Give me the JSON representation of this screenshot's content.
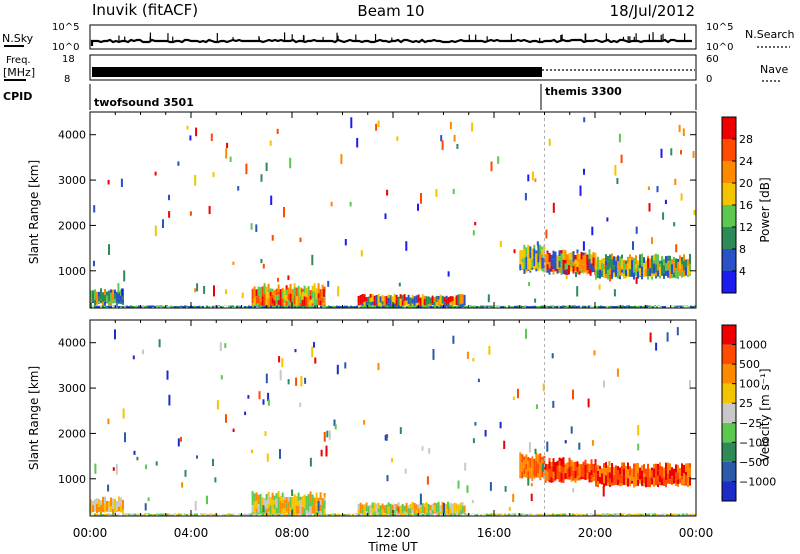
{
  "header": {
    "station": "Inuvik (fitACF)",
    "beam": "Beam 10",
    "date": "18/Jul/2012"
  },
  "top_panels": {
    "nsky_label": "N.Sky",
    "nsky_ticks": [
      "10^5",
      "10^0"
    ],
    "nsearch_label": "N.Search",
    "nsearch_ticks": [
      "10^5",
      "10^0"
    ],
    "freq_label_line1": "Freq.",
    "freq_label_line2": "[MHz]",
    "freq_ticks": [
      "18",
      "8"
    ],
    "nave_label": "Nave",
    "nave_ticks": [
      "60",
      "0"
    ],
    "cpid_label": "CPID",
    "cpid_segments": [
      {
        "name": "twofsound 3501",
        "start_hour": 0,
        "end_hour": 18
      },
      {
        "name": "themis 3300",
        "start_hour": 18,
        "end_hour": 24
      }
    ]
  },
  "x_axis": {
    "label": "Time UT",
    "ticks": [
      "00:00",
      "04:00",
      "08:00",
      "12:00",
      "16:00",
      "20:00",
      "00:00"
    ]
  },
  "chart_data": [
    {
      "type": "heatmap",
      "ylabel": "Slant Range [km]",
      "xlim": [
        0,
        24
      ],
      "ylim": [
        180,
        4500
      ],
      "yticks": [
        "1000",
        "2000",
        "3000",
        "4000"
      ],
      "colorbar": {
        "label": "Power [dB]",
        "ticks": [
          "4",
          "8",
          "12",
          "16",
          "20",
          "24",
          "28"
        ],
        "colors": [
          "#1c1cf0",
          "#2a52c8",
          "#2e8b57",
          "#5cc850",
          "#f5c400",
          "#ff8a00",
          "#ff4a00",
          "#ee0000"
        ]
      },
      "bands": [
        {
          "t0": 0.0,
          "t1": 1.3,
          "r0": 250,
          "r1": 560,
          "colors": [
            "#2a52c8",
            "#5cc850",
            "#ff8a00",
            "#2e8b57"
          ]
        },
        {
          "t0": 6.4,
          "t1": 9.3,
          "r0": 200,
          "r1": 650,
          "colors": [
            "#ee0000",
            "#ff4a00",
            "#ff8a00",
            "#f5c400",
            "#5cc850"
          ]
        },
        {
          "t0": 10.6,
          "t1": 14.8,
          "r0": 200,
          "r1": 450,
          "colors": [
            "#ee0000",
            "#ff8a00",
            "#f5c400",
            "#2e8b57",
            "#2a52c8"
          ]
        },
        {
          "t0": 17.0,
          "t1": 18.0,
          "r0": 1000,
          "r1": 1500,
          "colors": [
            "#2a52c8",
            "#5cc850",
            "#f5c400"
          ]
        },
        {
          "t0": 18.0,
          "t1": 20.0,
          "r0": 950,
          "r1": 1400,
          "colors": [
            "#2a52c8",
            "#5cc850",
            "#f5c400",
            "#ff8a00",
            "#ee0000"
          ]
        },
        {
          "t0": 20.0,
          "t1": 23.8,
          "r0": 850,
          "r1": 1300,
          "colors": [
            "#2a52c8",
            "#2e8b57",
            "#5cc850",
            "#f5c400",
            "#ff8a00"
          ]
        },
        {
          "t0": 0.0,
          "t1": 24.0,
          "r0": 180,
          "r1": 230,
          "colors": [
            "#2a52c8",
            "#2e8b57",
            "#5cc850"
          ]
        }
      ]
    },
    {
      "type": "heatmap",
      "ylabel": "Slant Range [km]",
      "xlim": [
        0,
        24
      ],
      "ylim": [
        180,
        4500
      ],
      "yticks": [
        "1000",
        "2000",
        "3000",
        "4000"
      ],
      "colorbar": {
        "label": "Velocity [m s⁻¹]",
        "ticks": [
          "1000",
          "500",
          "100",
          "25",
          "−25",
          "−100",
          "−500",
          "−1000"
        ],
        "colors": [
          "#1c2cc8",
          "#2a5aa8",
          "#2e8b57",
          "#5cc850",
          "#c8c8c8",
          "#f5c400",
          "#ff8a00",
          "#ff4a00",
          "#ee0000"
        ]
      },
      "bands": [
        {
          "t0": 0.0,
          "t1": 1.3,
          "r0": 250,
          "r1": 560,
          "colors": [
            "#ff8a00",
            "#f5c400",
            "#c8c8c8"
          ]
        },
        {
          "t0": 6.4,
          "t1": 9.3,
          "r0": 200,
          "r1": 650,
          "colors": [
            "#5cc850",
            "#c8c8c8",
            "#f5c400",
            "#ff8a00"
          ]
        },
        {
          "t0": 10.6,
          "t1": 14.8,
          "r0": 200,
          "r1": 450,
          "colors": [
            "#f5c400",
            "#ff8a00",
            "#c8c8c8",
            "#5cc850"
          ]
        },
        {
          "t0": 17.0,
          "t1": 18.0,
          "r0": 1000,
          "r1": 1500,
          "colors": [
            "#ff8a00",
            "#ff4a00"
          ]
        },
        {
          "t0": 18.0,
          "t1": 20.0,
          "r0": 950,
          "r1": 1400,
          "colors": [
            "#ff4a00",
            "#ff8a00",
            "#ee0000"
          ]
        },
        {
          "t0": 20.0,
          "t1": 23.8,
          "r0": 850,
          "r1": 1300,
          "colors": [
            "#ff4a00",
            "#ff8a00",
            "#ee0000"
          ]
        },
        {
          "t0": 0.0,
          "t1": 24.0,
          "r0": 180,
          "r1": 230,
          "colors": [
            "#c8c8c8",
            "#f5c400",
            "#5cc850"
          ]
        }
      ]
    }
  ]
}
